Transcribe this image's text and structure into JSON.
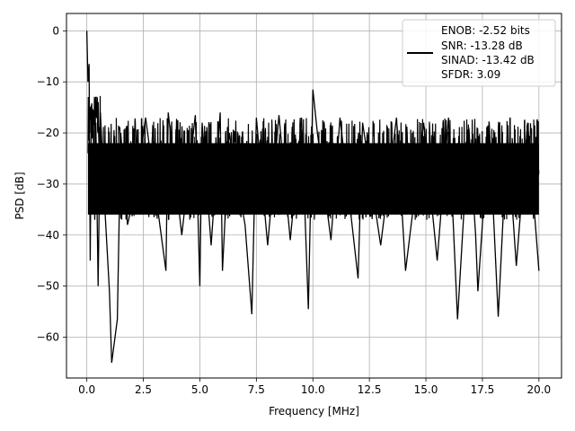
{
  "chart_data": {
    "type": "line",
    "title": "",
    "xlabel": "Frequency [MHz]",
    "ylabel": "PSD [dB]",
    "xlim": [
      -0.9,
      21.0
    ],
    "ylim": [
      -68,
      3.4
    ],
    "xticks": [
      0.0,
      2.5,
      5.0,
      7.5,
      10.0,
      12.5,
      15.0,
      17.5,
      20.0
    ],
    "xtick_labels": [
      "0.0",
      "2.5",
      "5.0",
      "7.5",
      "10.0",
      "12.5",
      "15.0",
      "17.5",
      "20.0"
    ],
    "yticks": [
      0,
      -10,
      -20,
      -30,
      -40,
      -50,
      -60
    ],
    "ytick_labels": [
      "0",
      "−10",
      "−20",
      "−30",
      "−40",
      "−50",
      "−60"
    ],
    "grid": true,
    "legend_position": "top-right",
    "legend_lines": [
      "ENOB: -2.52 bits",
      "SNR: -13.28 dB",
      "SINAD: -13.42 dB",
      "SFDR: 3.09"
    ],
    "series": [
      {
        "color": "#000000",
        "x": [
          0.0,
          0.05,
          0.1,
          0.15,
          0.2,
          0.3,
          0.35,
          0.4,
          0.5,
          0.6,
          0.8,
          1.0,
          1.1,
          1.35,
          1.5,
          1.8,
          2.2,
          2.6,
          3.5,
          3.6,
          4.2,
          4.8,
          5.0,
          5.1,
          5.5,
          5.9,
          6.0,
          6.3,
          7.0,
          7.3,
          7.5,
          8.0,
          8.5,
          9.0,
          9.5,
          9.8,
          10.0,
          10.2,
          10.8,
          11.2,
          12.0,
          12.2,
          13.0,
          13.7,
          14.1,
          14.9,
          15.5,
          16.0,
          16.4,
          16.9,
          17.2,
          17.3,
          17.8,
          18.2,
          18.6,
          19.0,
          19.5,
          20.0
        ],
        "y": [
          0,
          -10,
          -6.5,
          -45,
          -14.5,
          -20,
          -37,
          -18,
          -50,
          -16,
          -35,
          -51,
          -65,
          -56.5,
          -20,
          -38,
          -30,
          -17,
          -47,
          -16,
          -40,
          -16.5,
          -50,
          -18,
          -42,
          -16,
          -47,
          -20,
          -38,
          -55.5,
          -17,
          -42,
          -16.5,
          -41,
          -17,
          -54.5,
          -11.5,
          -20,
          -41,
          -17,
          -48.5,
          -18,
          -42,
          -17,
          -47,
          -18,
          -45,
          -17,
          -56.5,
          -19,
          -40,
          -51,
          -18,
          -56,
          -20,
          -46,
          -18,
          -47
        ]
      }
    ]
  }
}
